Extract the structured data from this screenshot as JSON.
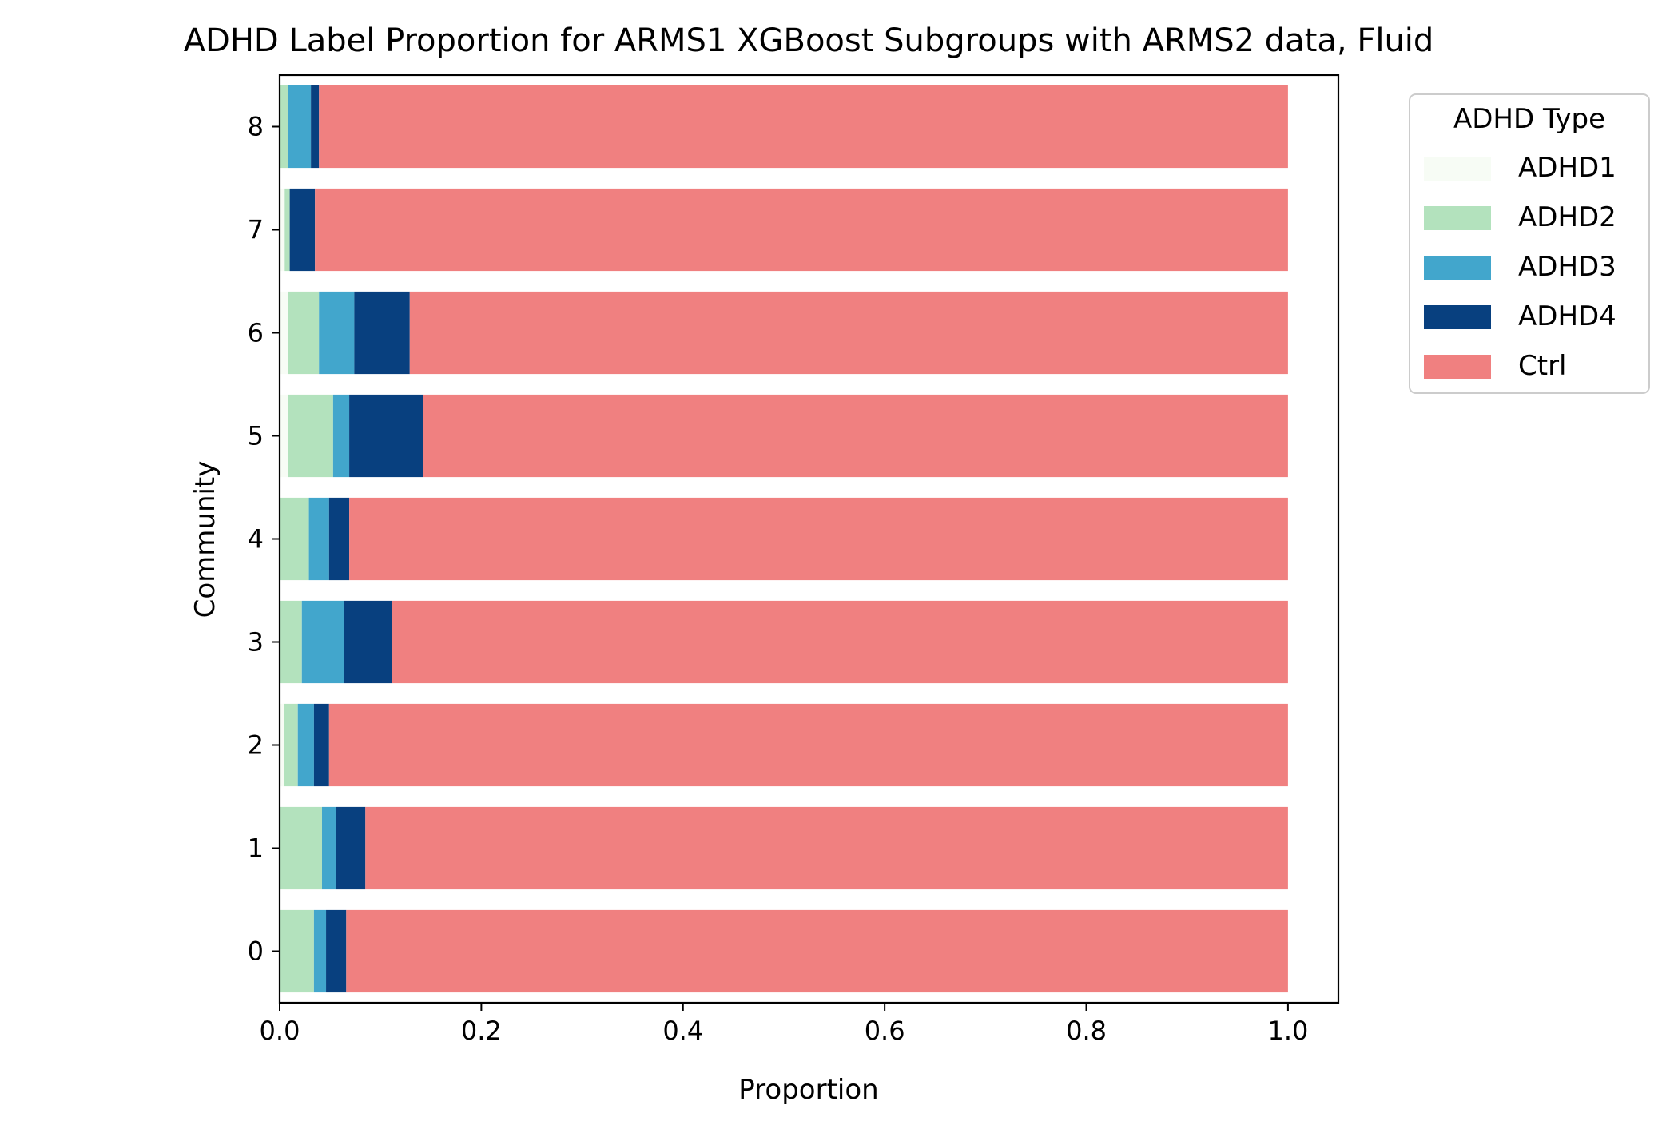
{
  "chart_data": {
    "type": "bar",
    "orientation": "horizontal",
    "stacked": true,
    "title": "ADHD Label Proportion for ARMS1 XGBoost Subgroups with ARMS2 data, Fluid",
    "xlabel": "Proportion",
    "ylabel": "Community",
    "xlim": [
      0.0,
      1.05
    ],
    "xticks": [
      "0.0",
      "0.2",
      "0.4",
      "0.6",
      "0.8",
      "1.0"
    ],
    "categories": [
      "0",
      "1",
      "2",
      "3",
      "4",
      "5",
      "6",
      "7",
      "8"
    ],
    "grid": false,
    "legend": {
      "title": "ADHD Type",
      "placement": "outside-upper-right"
    },
    "series": [
      {
        "name": "ADHD1",
        "color": "#f7fcf5",
        "values": [
          0.0,
          0.0,
          0.004,
          0.0,
          0.0,
          0.008,
          0.008,
          0.005,
          0.0
        ]
      },
      {
        "name": "ADHD2",
        "color": "#b3e2bd",
        "values": [
          0.034,
          0.042,
          0.014,
          0.022,
          0.029,
          0.045,
          0.031,
          0.005,
          0.008
        ]
      },
      {
        "name": "ADHD3",
        "color": "#42a6cc",
        "values": [
          0.012,
          0.014,
          0.016,
          0.042,
          0.02,
          0.016,
          0.035,
          0.0,
          0.023
        ]
      },
      {
        "name": "ADHD4",
        "color": "#08407f",
        "values": [
          0.02,
          0.029,
          0.015,
          0.047,
          0.02,
          0.073,
          0.055,
          0.025,
          0.008
        ]
      },
      {
        "name": "Ctrl",
        "color": "#f08080",
        "values": [
          0.934,
          0.915,
          0.951,
          0.889,
          0.931,
          0.858,
          0.871,
          0.965,
          0.961
        ]
      }
    ]
  }
}
